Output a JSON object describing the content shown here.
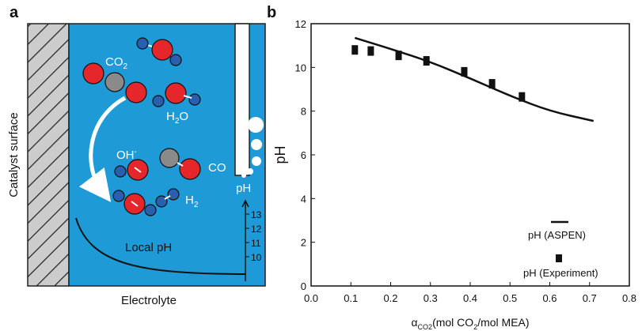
{
  "panel_a": {
    "label": "a",
    "catalyst_label": "Catalyst surface",
    "electrolyte_label": "Electrolyte",
    "local_ph_label": "Local pH",
    "ph_label": "pH",
    "co2_text": "CO",
    "co2_sub": "2",
    "h2o_text": "H",
    "h2o_sub": "2",
    "h2o_tail": "O",
    "oh_text": "OH",
    "oh_sup": "-",
    "h2_text": "H",
    "h2_sub": "2",
    "co_text": "CO",
    "ph_scale_ticks": [
      "13",
      "12",
      "11",
      "10"
    ],
    "colors": {
      "electrolyte": "#1e9ad6",
      "oxygen": "#e5262b",
      "hydrogen": "#2a5fb0",
      "carbon": "#8a8a8a",
      "catalyst": "#cccccc"
    }
  },
  "panel_b": {
    "label": "b",
    "legend_line_label": "pH (ASPEN)",
    "legend_marker_label": "pH (Experiment)",
    "ylabel": "pH",
    "xlabel_alpha": "α",
    "xlabel_sub": "CO2",
    "xlabel_rest1": "(mol CO",
    "xlabel_sub2": "2",
    "xlabel_rest2": "/mol MEA)"
  },
  "chart_data": {
    "type": "scatter",
    "x_ticks": [
      "0.0",
      "0.1",
      "0.2",
      "0.3",
      "0.4",
      "0.5",
      "0.6",
      "0.7",
      "0.8"
    ],
    "y_ticks": [
      "0",
      "2",
      "4",
      "6",
      "8",
      "10",
      "12"
    ],
    "xlim": [
      0,
      0.8
    ],
    "ylim": [
      0,
      12
    ],
    "series": [
      {
        "name": "pH (ASPEN)",
        "kind": "line",
        "x": [
          0.11,
          0.2,
          0.3,
          0.4,
          0.5,
          0.6,
          0.71
        ],
        "y": [
          11.35,
          10.85,
          10.25,
          9.5,
          8.7,
          8.0,
          7.55
        ]
      },
      {
        "name": "pH (Experiment)",
        "kind": "marker",
        "x": [
          0.11,
          0.15,
          0.22,
          0.29,
          0.385,
          0.455,
          0.53
        ],
        "y": [
          10.8,
          10.75,
          10.55,
          10.3,
          9.8,
          9.25,
          8.65
        ]
      }
    ],
    "legend_position": "bottom-right",
    "grid": false
  }
}
